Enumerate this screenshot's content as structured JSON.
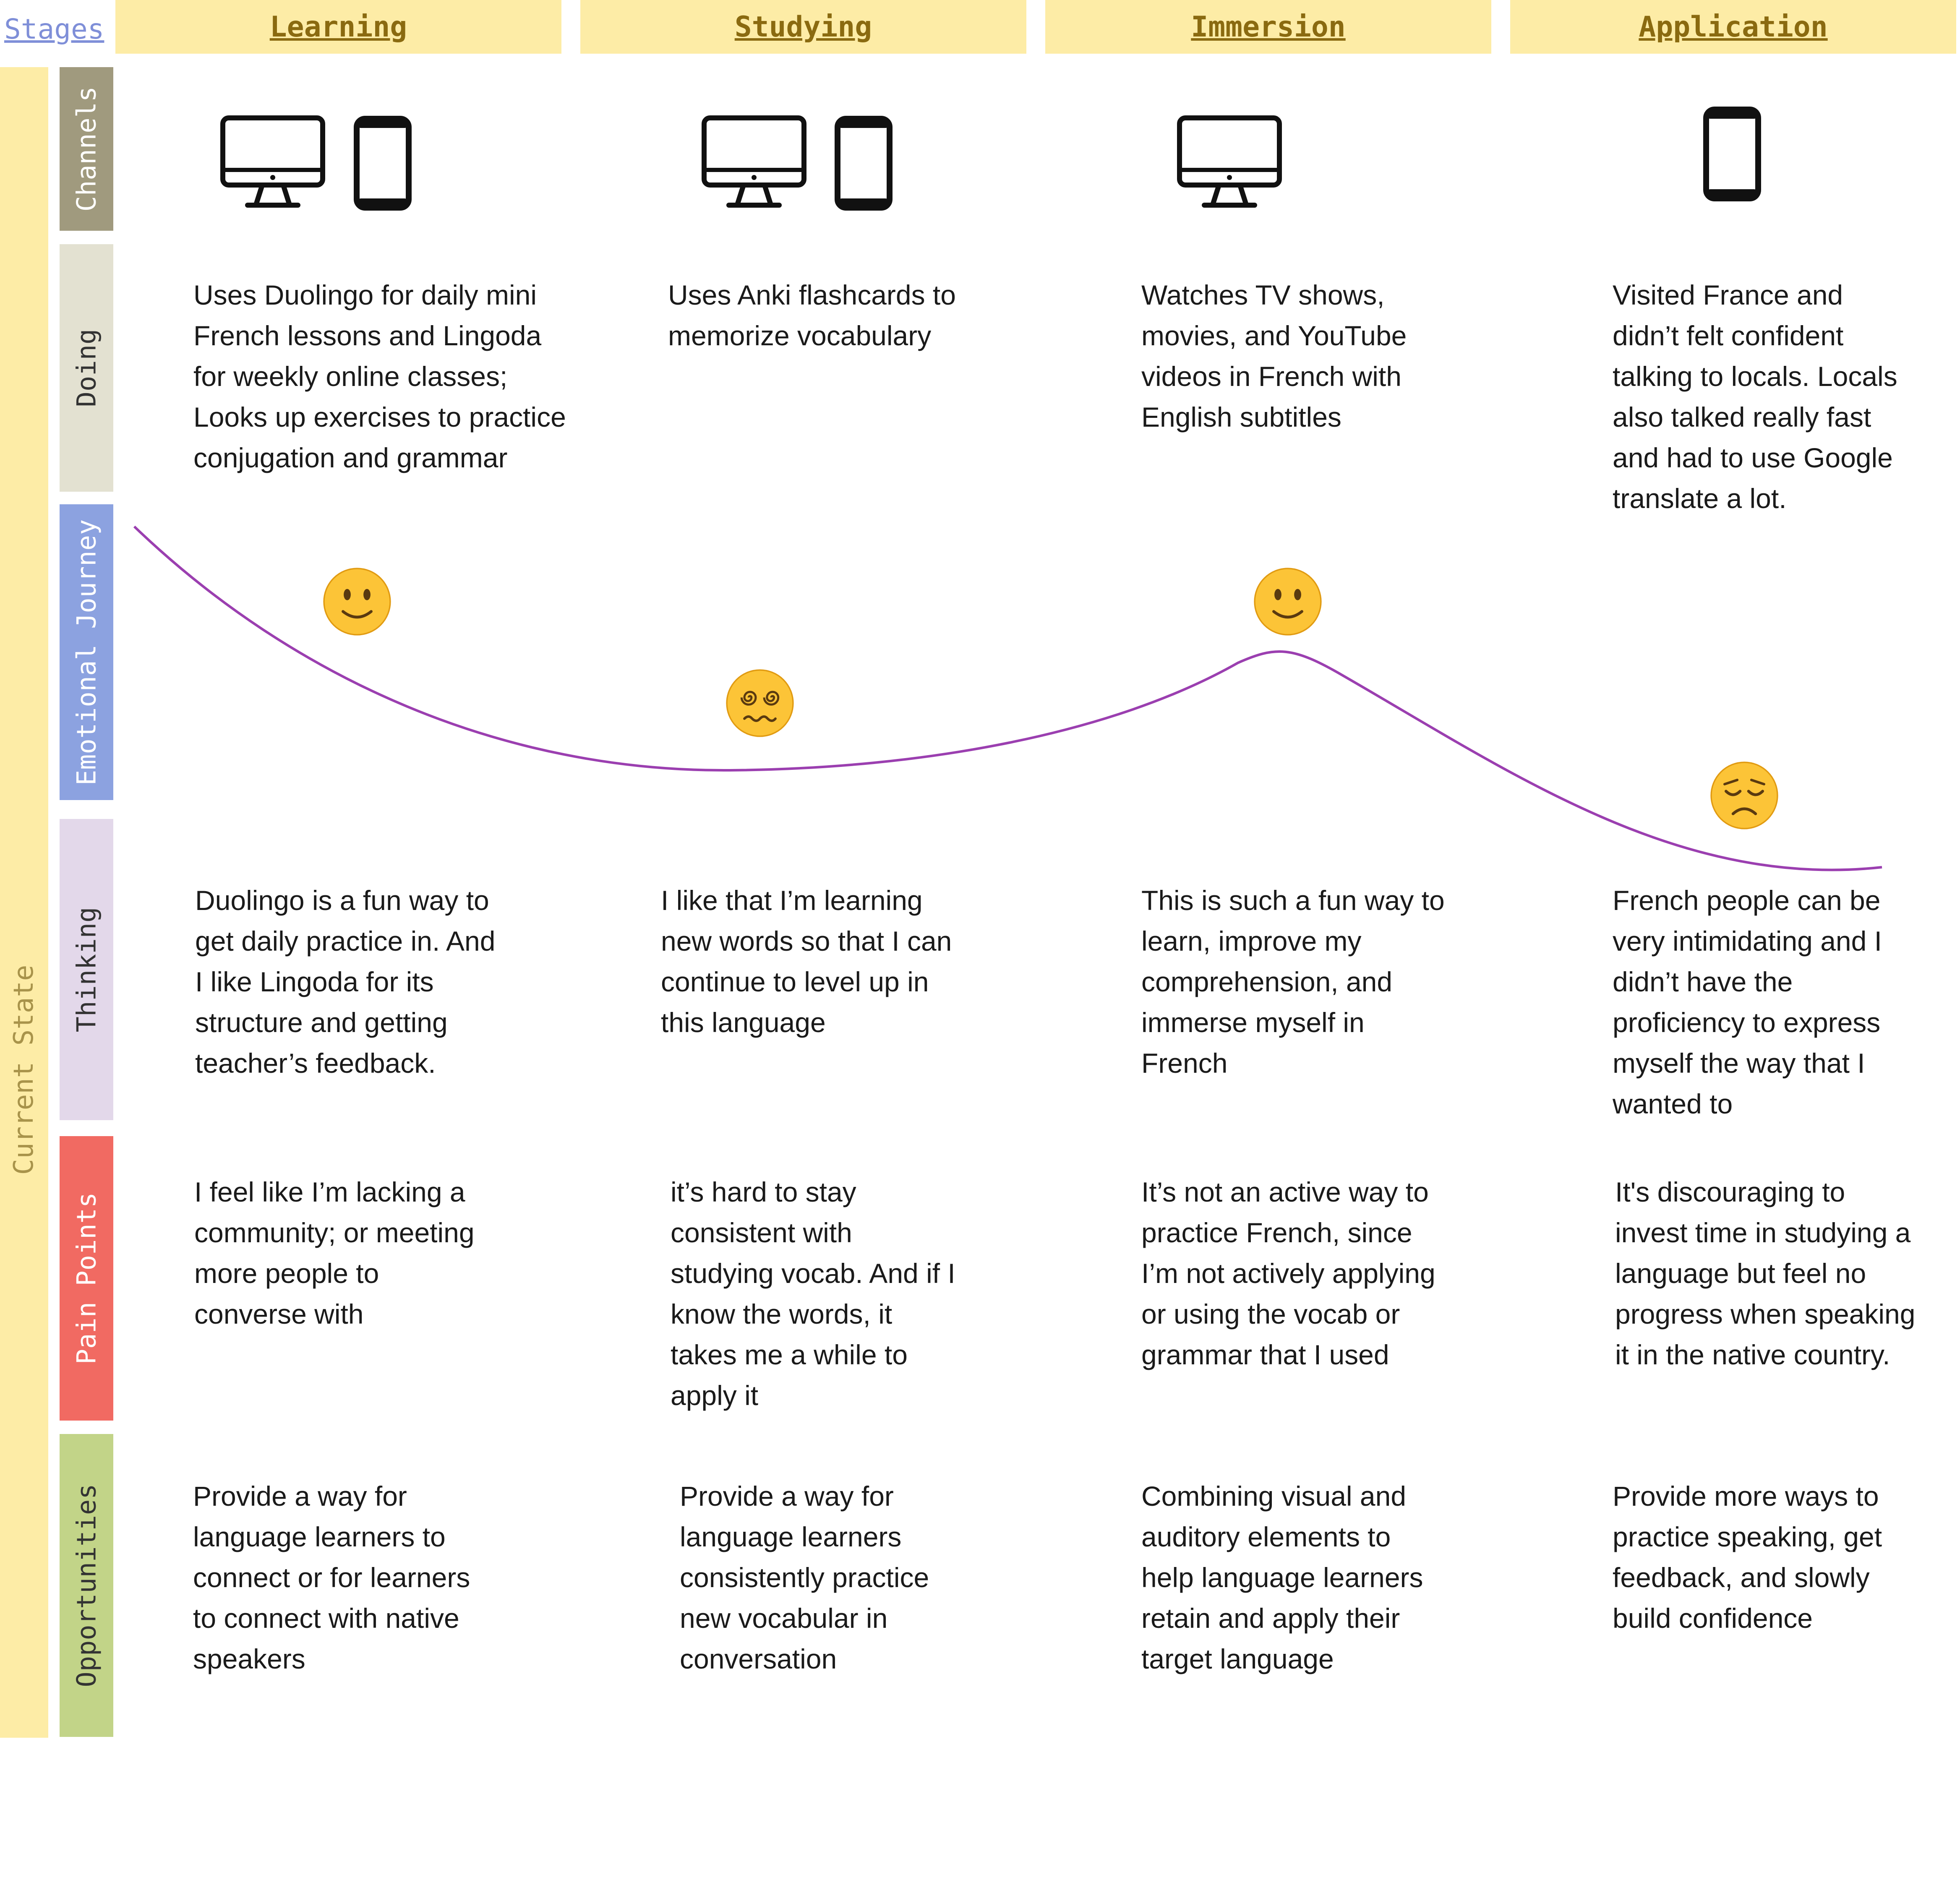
{
  "header": {
    "stages_label": "Stages",
    "stages": [
      "Learning",
      "Studying",
      "Immersion",
      "Application"
    ]
  },
  "current_state_label": "Current State",
  "rows": {
    "channels": "Channels",
    "doing": "Doing",
    "emotional": "Emotional Journey",
    "thinking": "Thinking",
    "pain": "Pain Points",
    "opportunities": "Opportunities"
  },
  "row_colors": {
    "channels": "#a09a7e",
    "doing": "#e3e1d1",
    "emotional": "#8ca2e0",
    "thinking": "#e3d8ea",
    "pain": "#f16a62",
    "opportunities": "#c2d488",
    "curve": "#9b3fb0"
  },
  "channels": [
    [
      "desktop-icon",
      "mobile-icon"
    ],
    [
      "desktop-icon",
      "mobile-icon"
    ],
    [
      "desktop-icon"
    ],
    [
      "mobile-icon"
    ]
  ],
  "emotions": [
    "slightly-smiling-face",
    "dizzy-face",
    "slightly-smiling-face",
    "disappointed-face"
  ],
  "doing": [
    "Uses Duolingo for daily mini\nFrench lessons and Lingoda\nfor weekly online classes;\nLooks up exercises to practice\nconjugation and grammar",
    "Uses Anki flashcards to\nmemorize vocabulary",
    "Watches TV shows,\nmovies, and YouTube\nvideos in French with\nEnglish subtitles",
    "Visited France and\ndidn’t felt confident\ntalking to locals. Locals\nalso talked really fast\nand had to use Google\ntranslate a lot."
  ],
  "thinking": [
    "Duolingo is a fun way to\nget daily practice in. And\nI like Lingoda for its\nstructure and getting\nteacher’s feedback.",
    "I like that I’m learning\nnew words so that I can\ncontinue to level up in\nthis language",
    "This is such a fun way to\nlearn, improve my\ncomprehension, and\nimmerse myself in\nFrench",
    "French people can be\nvery intimidating and I\ndidn’t have the\nproficiency to express\nmyself the way that I\nwanted to"
  ],
  "pain_points": [
    "I feel like I’m lacking a\ncommunity; or meeting\nmore people to\nconverse with",
    "it’s hard to stay\nconsistent with\nstudying vocab. And if I\nknow the words, it\ntakes me a while to\napply it",
    "It’s not an active way to\npractice French, since\nI’m not actively applying\nor using the vocab or\ngrammar that I used",
    "It's discouraging to\ninvest time in studying a\nlanguage but feel no\nprogress when speaking\nit in the native country."
  ],
  "opportunities": [
    "Provide a way for\nlanguage learners to\nconnect or for learners\nto connect with native\nspeakers",
    "Provide a way for\nlanguage learners\nconsistently practice\nnew vocabular in\nconversation",
    "Combining visual and\nauditory elements to\nhelp language learners\nretain and apply their\ntarget language",
    "Provide more ways to\npractice speaking, get\nfeedback, and slowly\nbuild confidence"
  ]
}
